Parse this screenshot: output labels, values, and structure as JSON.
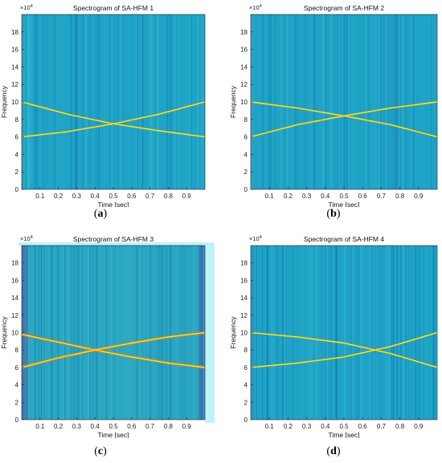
{
  "chart_data": [
    {
      "type": "heatmap",
      "title": "Spectrogram of SA-HFM 1",
      "xlabel": "Time [sec]",
      "ylabel": "Frequency",
      "y_multiplier": "×10",
      "y_multiplier_exp": "4",
      "xlim": [
        0,
        1
      ],
      "ylim": [
        0,
        20
      ],
      "xticks": [
        0.1,
        0.2,
        0.3,
        0.4,
        0.5,
        0.6,
        0.7,
        0.8,
        0.9
      ],
      "yticks": [
        0,
        2,
        4,
        6,
        8,
        10,
        12,
        14,
        16,
        18
      ],
      "series": [
        {
          "x": [
            0,
            0.25,
            0.5,
            0.75,
            1
          ],
          "y": [
            10.0,
            8.6,
            7.5,
            6.7,
            6.0
          ]
        },
        {
          "x": [
            0,
            0.25,
            0.5,
            0.75,
            1
          ],
          "y": [
            6.0,
            6.6,
            7.5,
            8.6,
            10.0
          ]
        }
      ],
      "colors": {
        "background": "#1ea3c6",
        "frame": "#1ea3c6",
        "line": "#e8ef2a"
      },
      "caption_letter": "a"
    },
    {
      "type": "heatmap",
      "title": "Spectrogram of SA-HFM 2",
      "xlabel": "Time [sec]",
      "ylabel": "Frequency",
      "y_multiplier": "×10",
      "y_multiplier_exp": "4",
      "xlim": [
        0,
        1
      ],
      "ylim": [
        0,
        20
      ],
      "xticks": [
        0.1,
        0.2,
        0.3,
        0.4,
        0.5,
        0.6,
        0.7,
        0.8,
        0.9
      ],
      "yticks": [
        0,
        2,
        4,
        6,
        8,
        10,
        12,
        14,
        16,
        18
      ],
      "series": [
        {
          "x": [
            0,
            0.25,
            0.5,
            0.75,
            1
          ],
          "y": [
            10.0,
            9.3,
            8.4,
            7.4,
            6.0
          ]
        },
        {
          "x": [
            0,
            0.25,
            0.5,
            0.75,
            1
          ],
          "y": [
            6.0,
            7.4,
            8.4,
            9.3,
            10.0
          ]
        }
      ],
      "colors": {
        "background": "#1ea3c6",
        "frame": "#1ea3c6",
        "line": "#e8ef2a"
      },
      "caption_letter": "b"
    },
    {
      "type": "heatmap",
      "title": "Spectrogram of SA-HFM 3",
      "xlabel": "Time [sec]",
      "ylabel": "Frequency",
      "y_multiplier": "×10",
      "y_multiplier_exp": "4",
      "xlim": [
        0,
        1
      ],
      "ylim": [
        0,
        20
      ],
      "xticks": [
        0.1,
        0.2,
        0.3,
        0.4,
        0.5,
        0.6,
        0.7,
        0.8,
        0.9
      ],
      "yticks": [
        0,
        2,
        4,
        6,
        8,
        10,
        12,
        14,
        16,
        18
      ],
      "series": [
        {
          "x": [
            0,
            0.2,
            0.4,
            0.6,
            0.8,
            1
          ],
          "y": [
            9.8,
            8.9,
            8.0,
            7.2,
            6.5,
            6.0
          ]
        },
        {
          "x": [
            0,
            0.2,
            0.4,
            0.6,
            0.8,
            1
          ],
          "y": [
            6.0,
            7.1,
            8.0,
            8.8,
            9.5,
            10.0
          ]
        }
      ],
      "colors": {
        "background": "#2aa6c0",
        "frame": "#bff3f5",
        "line": "#e8ef2a"
      },
      "caption_letter": "c"
    },
    {
      "type": "heatmap",
      "title": "Spectrogram of SA-HFM 4",
      "xlabel": "Time [sec]",
      "ylabel": "Frequency",
      "y_multiplier": "×10",
      "y_multiplier_exp": "4",
      "xlim": [
        0,
        1
      ],
      "ylim": [
        0,
        20
      ],
      "xticks": [
        0.1,
        0.2,
        0.3,
        0.4,
        0.5,
        0.6,
        0.7,
        0.8,
        0.9
      ],
      "yticks": [
        0,
        2,
        4,
        6,
        8,
        10,
        12,
        14,
        16,
        18
      ],
      "series": [
        {
          "x": [
            0,
            0.25,
            0.5,
            0.75,
            1
          ],
          "y": [
            10.0,
            9.5,
            8.8,
            7.6,
            6.0
          ]
        },
        {
          "x": [
            0,
            0.25,
            0.5,
            0.75,
            1
          ],
          "y": [
            6.0,
            6.5,
            7.2,
            8.4,
            10.0
          ]
        }
      ],
      "colors": {
        "background": "#1ea3c6",
        "frame": "#1ea3c6",
        "line": "#e8ef2a"
      },
      "caption_letter": "d"
    }
  ]
}
